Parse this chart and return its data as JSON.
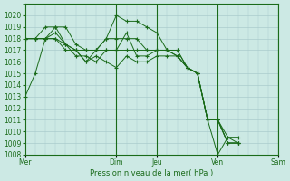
{
  "background_color": "#cce9e4",
  "grid_color": "#aacccc",
  "line_color": "#1a6b1a",
  "xlabel": "Pression niveau de la mer( hPa )",
  "ylim": [
    1008,
    1021
  ],
  "yticks": [
    1008,
    1009,
    1010,
    1011,
    1012,
    1013,
    1014,
    1015,
    1016,
    1017,
    1018,
    1019,
    1020
  ],
  "xtick_labels": [
    "Mer",
    "Dim",
    "Jeu",
    "Ven",
    "Sam"
  ],
  "xtick_positions": [
    0,
    9,
    13,
    19,
    25
  ],
  "series": [
    [
      1013,
      1015,
      1018,
      1019,
      1019,
      1017.5,
      1017,
      1017,
      1018,
      1020,
      1019.5,
      1019.5,
      1019,
      1018.5,
      1017,
      1016.5,
      1015.5,
      1015,
      1011,
      1011,
      1009,
      1009
    ],
    [
      1018,
      1018,
      1018,
      1018.5,
      1017.5,
      1017,
      1016,
      1017,
      1018,
      1018,
      1018,
      1018,
      1017,
      1017,
      1017,
      1016.5,
      1015.5,
      1015,
      1011,
      1011,
      1009.5,
      1009
    ],
    [
      1018,
      1018,
      1019,
      1019,
      1017.5,
      1017,
      1017,
      1017,
      1017,
      1017,
      1018.5,
      1016.5,
      1016.5,
      1017,
      1017,
      1017,
      1015.5,
      1015,
      1011,
      1011,
      1009,
      1009
    ],
    [
      1018,
      1018,
      1018,
      1018,
      1017.5,
      1016.5,
      1016.5,
      1016,
      1017,
      1017,
      1017,
      1017,
      1017,
      1017,
      1017,
      1017,
      1015.5,
      1015,
      1011,
      1011,
      1009,
      1009
    ],
    [
      1018,
      1018,
      1018,
      1018,
      1017,
      1017,
      1016,
      1016.5,
      1016,
      1015.5,
      1016.5,
      1016,
      1016,
      1016.5,
      1016.5,
      1016.5,
      1015.5,
      1015,
      1011,
      1008,
      1009.5,
      1009.5
    ]
  ]
}
